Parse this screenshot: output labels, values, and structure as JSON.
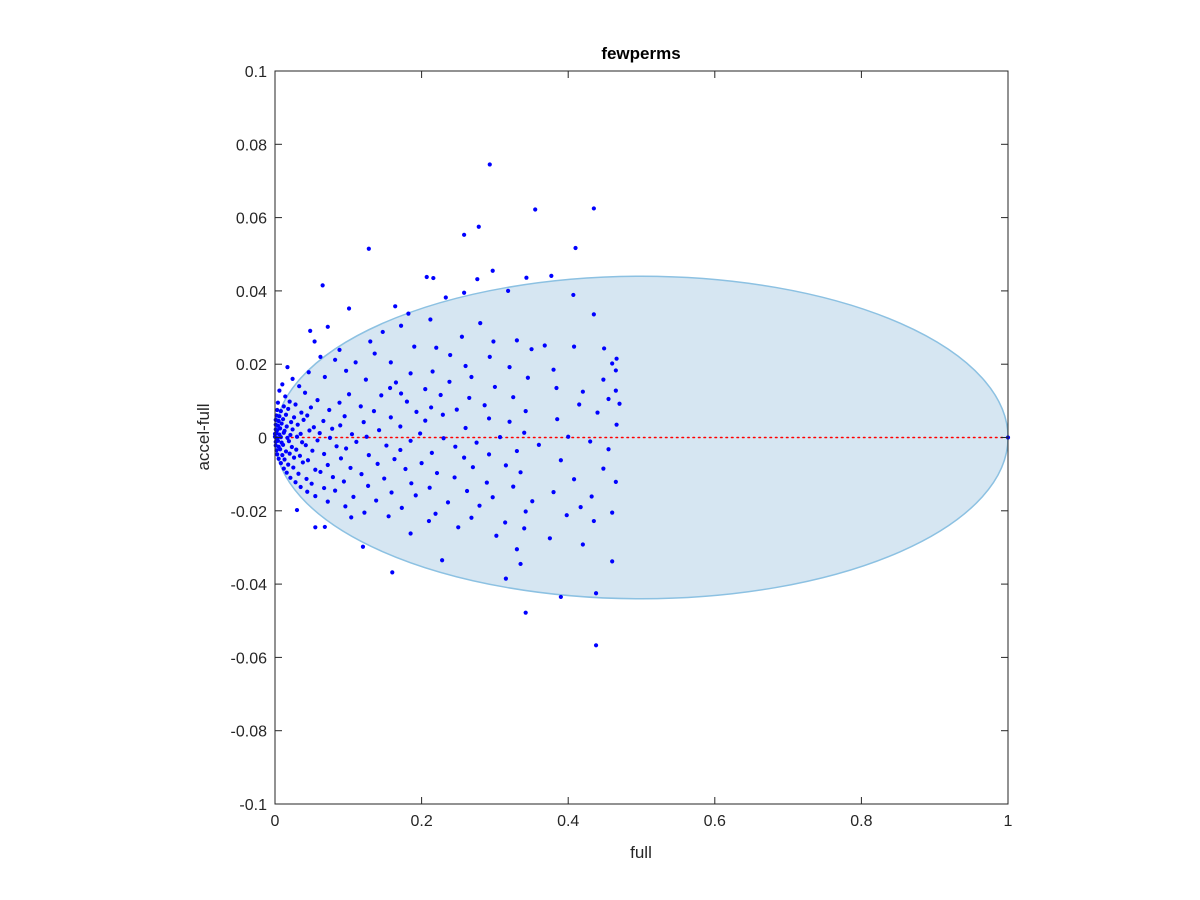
{
  "chart_data": {
    "type": "scatter",
    "title": "fewperms",
    "xlabel": "full",
    "ylabel": "accel-full",
    "xlim": [
      0,
      1
    ],
    "ylim": [
      -0.1,
      0.1
    ],
    "xticks": [
      "0",
      "0.2",
      "0.4",
      "0.6",
      "0.8",
      "1"
    ],
    "yticks": [
      "0.1",
      "0.08",
      "0.06",
      "0.04",
      "0.02",
      "0",
      "-0.02",
      "-0.04",
      "-0.06",
      "-0.08",
      "-0.1"
    ],
    "grid": false,
    "colors": {
      "points": "#0000ff",
      "region_fill": "#d6e6f2",
      "region_stroke": "#8cc1e2",
      "reference_line": "#ff0000"
    },
    "reference_line": {
      "y": 0,
      "x_from": 0,
      "x_to": 1,
      "style": "dotted"
    },
    "shaded_region": {
      "shape": "ellipse",
      "center_x": 0.5,
      "center_y": 0,
      "x_halfwidth": 0.5,
      "y_halfheight": 0.044
    },
    "points": [
      [
        0.293,
        0.0745
      ],
      [
        0.355,
        0.0622
      ],
      [
        0.435,
        0.0625
      ],
      [
        0.278,
        0.0575
      ],
      [
        0.258,
        0.0553
      ],
      [
        0.128,
        0.0515
      ],
      [
        0.41,
        0.0517
      ],
      [
        0.297,
        0.0455
      ],
      [
        0.276,
        0.0432
      ],
      [
        0.207,
        0.0438
      ],
      [
        0.216,
        0.0435
      ],
      [
        0.377,
        0.0441
      ],
      [
        0.343,
        0.0436
      ],
      [
        0.065,
        0.0415
      ],
      [
        0.318,
        0.04
      ],
      [
        0.258,
        0.0395
      ],
      [
        0.407,
        0.0389
      ],
      [
        0.233,
        0.0382
      ],
      [
        0.164,
        0.0358
      ],
      [
        0.101,
        0.0352
      ],
      [
        0.182,
        0.0338
      ],
      [
        0.435,
        0.0336
      ],
      [
        0.212,
        0.0322
      ],
      [
        0.28,
        0.0312
      ],
      [
        0.172,
        0.0305
      ],
      [
        0.072,
        0.0302
      ],
      [
        0.048,
        0.0291
      ],
      [
        0.147,
        0.0288
      ],
      [
        0.255,
        0.0275
      ],
      [
        0.298,
        0.0262
      ],
      [
        0.33,
        0.0265
      ],
      [
        0.368,
        0.0251
      ],
      [
        0.408,
        0.0248
      ],
      [
        0.449,
        0.0243
      ],
      [
        0.054,
        0.0262
      ],
      [
        0.13,
        0.0262
      ],
      [
        0.19,
        0.0248
      ],
      [
        0.22,
        0.0245
      ],
      [
        0.35,
        0.0241
      ],
      [
        0.088,
        0.0239
      ],
      [
        0.136,
        0.0229
      ],
      [
        0.239,
        0.0225
      ],
      [
        0.293,
        0.022
      ],
      [
        0.466,
        0.0215
      ],
      [
        0.062,
        0.022
      ],
      [
        0.082,
        0.0212
      ],
      [
        0.11,
        0.0205
      ],
      [
        0.158,
        0.0205
      ],
      [
        0.26,
        0.0195
      ],
      [
        0.32,
        0.0192
      ],
      [
        0.46,
        0.0202
      ],
      [
        0.38,
        0.0185
      ],
      [
        0.465,
        0.0183
      ],
      [
        0.017,
        0.0192
      ],
      [
        0.046,
        0.0178
      ],
      [
        0.097,
        0.0182
      ],
      [
        0.185,
        0.0175
      ],
      [
        0.215,
        0.018
      ],
      [
        0.268,
        0.0165
      ],
      [
        0.345,
        0.0163
      ],
      [
        0.024,
        0.016
      ],
      [
        0.068,
        0.0165
      ],
      [
        0.124,
        0.0158
      ],
      [
        0.165,
        0.015
      ],
      [
        0.238,
        0.0152
      ],
      [
        0.448,
        0.0158
      ],
      [
        0.01,
        0.0145
      ],
      [
        0.033,
        0.014
      ],
      [
        0.157,
        0.0135
      ],
      [
        0.205,
        0.0132
      ],
      [
        0.3,
        0.0138
      ],
      [
        0.384,
        0.0135
      ],
      [
        0.42,
        0.0125
      ],
      [
        0.465,
        0.0128
      ],
      [
        0.006,
        0.0128
      ],
      [
        0.041,
        0.0122
      ],
      [
        0.101,
        0.0118
      ],
      [
        0.145,
        0.0115
      ],
      [
        0.172,
        0.012
      ],
      [
        0.226,
        0.0116
      ],
      [
        0.265,
        0.0108
      ],
      [
        0.325,
        0.011
      ],
      [
        0.455,
        0.0105
      ],
      [
        0.014,
        0.0112
      ],
      [
        0.02,
        0.0098
      ],
      [
        0.058,
        0.0102
      ],
      [
        0.088,
        0.0095
      ],
      [
        0.18,
        0.0098
      ],
      [
        0.47,
        0.0092
      ],
      [
        0.004,
        0.0095
      ],
      [
        0.012,
        0.0085
      ],
      [
        0.028,
        0.009
      ],
      [
        0.049,
        0.0082
      ],
      [
        0.117,
        0.0085
      ],
      [
        0.213,
        0.0082
      ],
      [
        0.286,
        0.0088
      ],
      [
        0.415,
        0.009
      ],
      [
        0.003,
        0.0075
      ],
      [
        0.008,
        0.0072
      ],
      [
        0.018,
        0.0078
      ],
      [
        0.036,
        0.0068
      ],
      [
        0.074,
        0.0075
      ],
      [
        0.135,
        0.0072
      ],
      [
        0.193,
        0.007
      ],
      [
        0.248,
        0.0076
      ],
      [
        0.342,
        0.0072
      ],
      [
        0.44,
        0.0068
      ],
      [
        0.002,
        0.006
      ],
      [
        0.006,
        0.0058
      ],
      [
        0.015,
        0.0062
      ],
      [
        0.026,
        0.0055
      ],
      [
        0.044,
        0.006
      ],
      [
        0.095,
        0.0058
      ],
      [
        0.158,
        0.0055
      ],
      [
        0.229,
        0.0062
      ],
      [
        0.292,
        0.0052
      ],
      [
        0.001,
        0.0048
      ],
      [
        0.005,
        0.0045
      ],
      [
        0.011,
        0.005
      ],
      [
        0.022,
        0.0042
      ],
      [
        0.039,
        0.0048
      ],
      [
        0.066,
        0.0045
      ],
      [
        0.121,
        0.0042
      ],
      [
        0.205,
        0.0046
      ],
      [
        0.32,
        0.0043
      ],
      [
        0.385,
        0.005
      ],
      [
        0.001,
        0.0035
      ],
      [
        0.004,
        0.0032
      ],
      [
        0.009,
        0.0038
      ],
      [
        0.016,
        0.003
      ],
      [
        0.031,
        0.0035
      ],
      [
        0.053,
        0.0028
      ],
      [
        0.089,
        0.0033
      ],
      [
        0.171,
        0.003
      ],
      [
        0.466,
        0.0035
      ],
      [
        0.001,
        0.0022
      ],
      [
        0.003,
        0.002
      ],
      [
        0.007,
        0.0025
      ],
      [
        0.013,
        0.0018
      ],
      [
        0.024,
        0.0022
      ],
      [
        0.047,
        0.0019
      ],
      [
        0.078,
        0.0024
      ],
      [
        0.142,
        0.002
      ],
      [
        0.26,
        0.0026
      ],
      [
        0.0,
        0.001
      ],
      [
        0.002,
        0.0012
      ],
      [
        0.006,
        0.0008
      ],
      [
        0.012,
        0.0013
      ],
      [
        0.021,
        0.0007
      ],
      [
        0.035,
        0.001
      ],
      [
        0.061,
        0.0012
      ],
      [
        0.105,
        0.0009
      ],
      [
        0.198,
        0.0011
      ],
      [
        0.34,
        0.0013
      ],
      [
        0.0,
        0.0002
      ],
      [
        0.003,
        -0.0002
      ],
      [
        0.008,
        0.0001
      ],
      [
        0.017,
        -0.0001
      ],
      [
        0.03,
        0.0002
      ],
      [
        0.075,
        -0.0001
      ],
      [
        0.125,
        0.0002
      ],
      [
        0.23,
        -0.0002
      ],
      [
        0.307,
        0.0001
      ],
      [
        0.4,
        0.0002
      ],
      [
        0.001,
        -0.0012
      ],
      [
        0.004,
        -0.0009
      ],
      [
        0.009,
        -0.0014
      ],
      [
        0.019,
        -0.001
      ],
      [
        0.037,
        -0.0013
      ],
      [
        0.058,
        -0.0008
      ],
      [
        0.111,
        -0.0012
      ],
      [
        0.185,
        -0.0009
      ],
      [
        0.275,
        -0.0014
      ],
      [
        0.43,
        -0.0011
      ],
      [
        0.001,
        -0.0022
      ],
      [
        0.005,
        -0.0025
      ],
      [
        0.011,
        -0.002
      ],
      [
        0.023,
        -0.0026
      ],
      [
        0.042,
        -0.0021
      ],
      [
        0.084,
        -0.0024
      ],
      [
        0.152,
        -0.0022
      ],
      [
        0.246,
        -0.0025
      ],
      [
        0.36,
        -0.002
      ],
      [
        0.002,
        -0.0035
      ],
      [
        0.007,
        -0.0032
      ],
      [
        0.015,
        -0.0038
      ],
      [
        0.029,
        -0.0033
      ],
      [
        0.051,
        -0.0036
      ],
      [
        0.097,
        -0.003
      ],
      [
        0.171,
        -0.0034
      ],
      [
        0.33,
        -0.0037
      ],
      [
        0.455,
        -0.0032
      ],
      [
        0.003,
        -0.0046
      ],
      [
        0.01,
        -0.0048
      ],
      [
        0.02,
        -0.0044
      ],
      [
        0.034,
        -0.005
      ],
      [
        0.067,
        -0.0045
      ],
      [
        0.128,
        -0.0048
      ],
      [
        0.214,
        -0.0042
      ],
      [
        0.292,
        -0.0046
      ],
      [
        0.005,
        -0.0058
      ],
      [
        0.013,
        -0.006
      ],
      [
        0.026,
        -0.0055
      ],
      [
        0.045,
        -0.0062
      ],
      [
        0.09,
        -0.0057
      ],
      [
        0.163,
        -0.0059
      ],
      [
        0.258,
        -0.0055
      ],
      [
        0.39,
        -0.0062
      ],
      [
        0.008,
        -0.007
      ],
      [
        0.018,
        -0.0074
      ],
      [
        0.038,
        -0.0068
      ],
      [
        0.072,
        -0.0075
      ],
      [
        0.14,
        -0.0072
      ],
      [
        0.2,
        -0.007
      ],
      [
        0.315,
        -0.0076
      ],
      [
        0.012,
        -0.0085
      ],
      [
        0.025,
        -0.0082
      ],
      [
        0.055,
        -0.0088
      ],
      [
        0.103,
        -0.0083
      ],
      [
        0.178,
        -0.0086
      ],
      [
        0.27,
        -0.0081
      ],
      [
        0.448,
        -0.0085
      ],
      [
        0.016,
        -0.0096
      ],
      [
        0.032,
        -0.0099
      ],
      [
        0.062,
        -0.0094
      ],
      [
        0.118,
        -0.01
      ],
      [
        0.221,
        -0.0097
      ],
      [
        0.335,
        -0.0095
      ],
      [
        0.021,
        -0.011
      ],
      [
        0.043,
        -0.0113
      ],
      [
        0.079,
        -0.0108
      ],
      [
        0.149,
        -0.0112
      ],
      [
        0.245,
        -0.0109
      ],
      [
        0.408,
        -0.0114
      ],
      [
        0.028,
        -0.0122
      ],
      [
        0.05,
        -0.0126
      ],
      [
        0.094,
        -0.012
      ],
      [
        0.186,
        -0.0125
      ],
      [
        0.289,
        -0.0123
      ],
      [
        0.465,
        -0.0121
      ],
      [
        0.035,
        -0.0135
      ],
      [
        0.067,
        -0.0138
      ],
      [
        0.127,
        -0.0132
      ],
      [
        0.211,
        -0.0137
      ],
      [
        0.325,
        -0.0134
      ],
      [
        0.044,
        -0.0148
      ],
      [
        0.082,
        -0.0145
      ],
      [
        0.159,
        -0.015
      ],
      [
        0.262,
        -0.0146
      ],
      [
        0.38,
        -0.0149
      ],
      [
        0.055,
        -0.016
      ],
      [
        0.107,
        -0.0162
      ],
      [
        0.192,
        -0.0158
      ],
      [
        0.297,
        -0.0163
      ],
      [
        0.432,
        -0.0161
      ],
      [
        0.072,
        -0.0175
      ],
      [
        0.138,
        -0.0172
      ],
      [
        0.236,
        -0.0177
      ],
      [
        0.351,
        -0.0174
      ],
      [
        0.096,
        -0.0188
      ],
      [
        0.173,
        -0.0192
      ],
      [
        0.279,
        -0.0186
      ],
      [
        0.417,
        -0.019
      ],
      [
        0.03,
        -0.0198
      ],
      [
        0.122,
        -0.0205
      ],
      [
        0.219,
        -0.0208
      ],
      [
        0.342,
        -0.0202
      ],
      [
        0.46,
        -0.0205
      ],
      [
        0.155,
        -0.0215
      ],
      [
        0.268,
        -0.0219
      ],
      [
        0.398,
        -0.0212
      ],
      [
        0.104,
        -0.0218
      ],
      [
        0.21,
        -0.0228
      ],
      [
        0.314,
        -0.0232
      ],
      [
        0.435,
        -0.0228
      ],
      [
        0.055,
        -0.0245
      ],
      [
        0.068,
        -0.0244
      ],
      [
        0.25,
        -0.0245
      ],
      [
        0.34,
        -0.0248
      ],
      [
        0.185,
        -0.0262
      ],
      [
        0.302,
        -0.0268
      ],
      [
        0.375,
        -0.0275
      ],
      [
        0.42,
        -0.0292
      ],
      [
        0.12,
        -0.0298
      ],
      [
        0.33,
        -0.0305
      ],
      [
        0.228,
        -0.0335
      ],
      [
        0.335,
        -0.0345
      ],
      [
        0.46,
        -0.0338
      ],
      [
        0.315,
        -0.0385
      ],
      [
        0.16,
        -0.0368
      ],
      [
        0.39,
        -0.0435
      ],
      [
        0.438,
        -0.0425
      ],
      [
        0.342,
        -0.0478
      ],
      [
        0.438,
        -0.0567
      ],
      [
        1.0,
        0.0
      ]
    ]
  }
}
